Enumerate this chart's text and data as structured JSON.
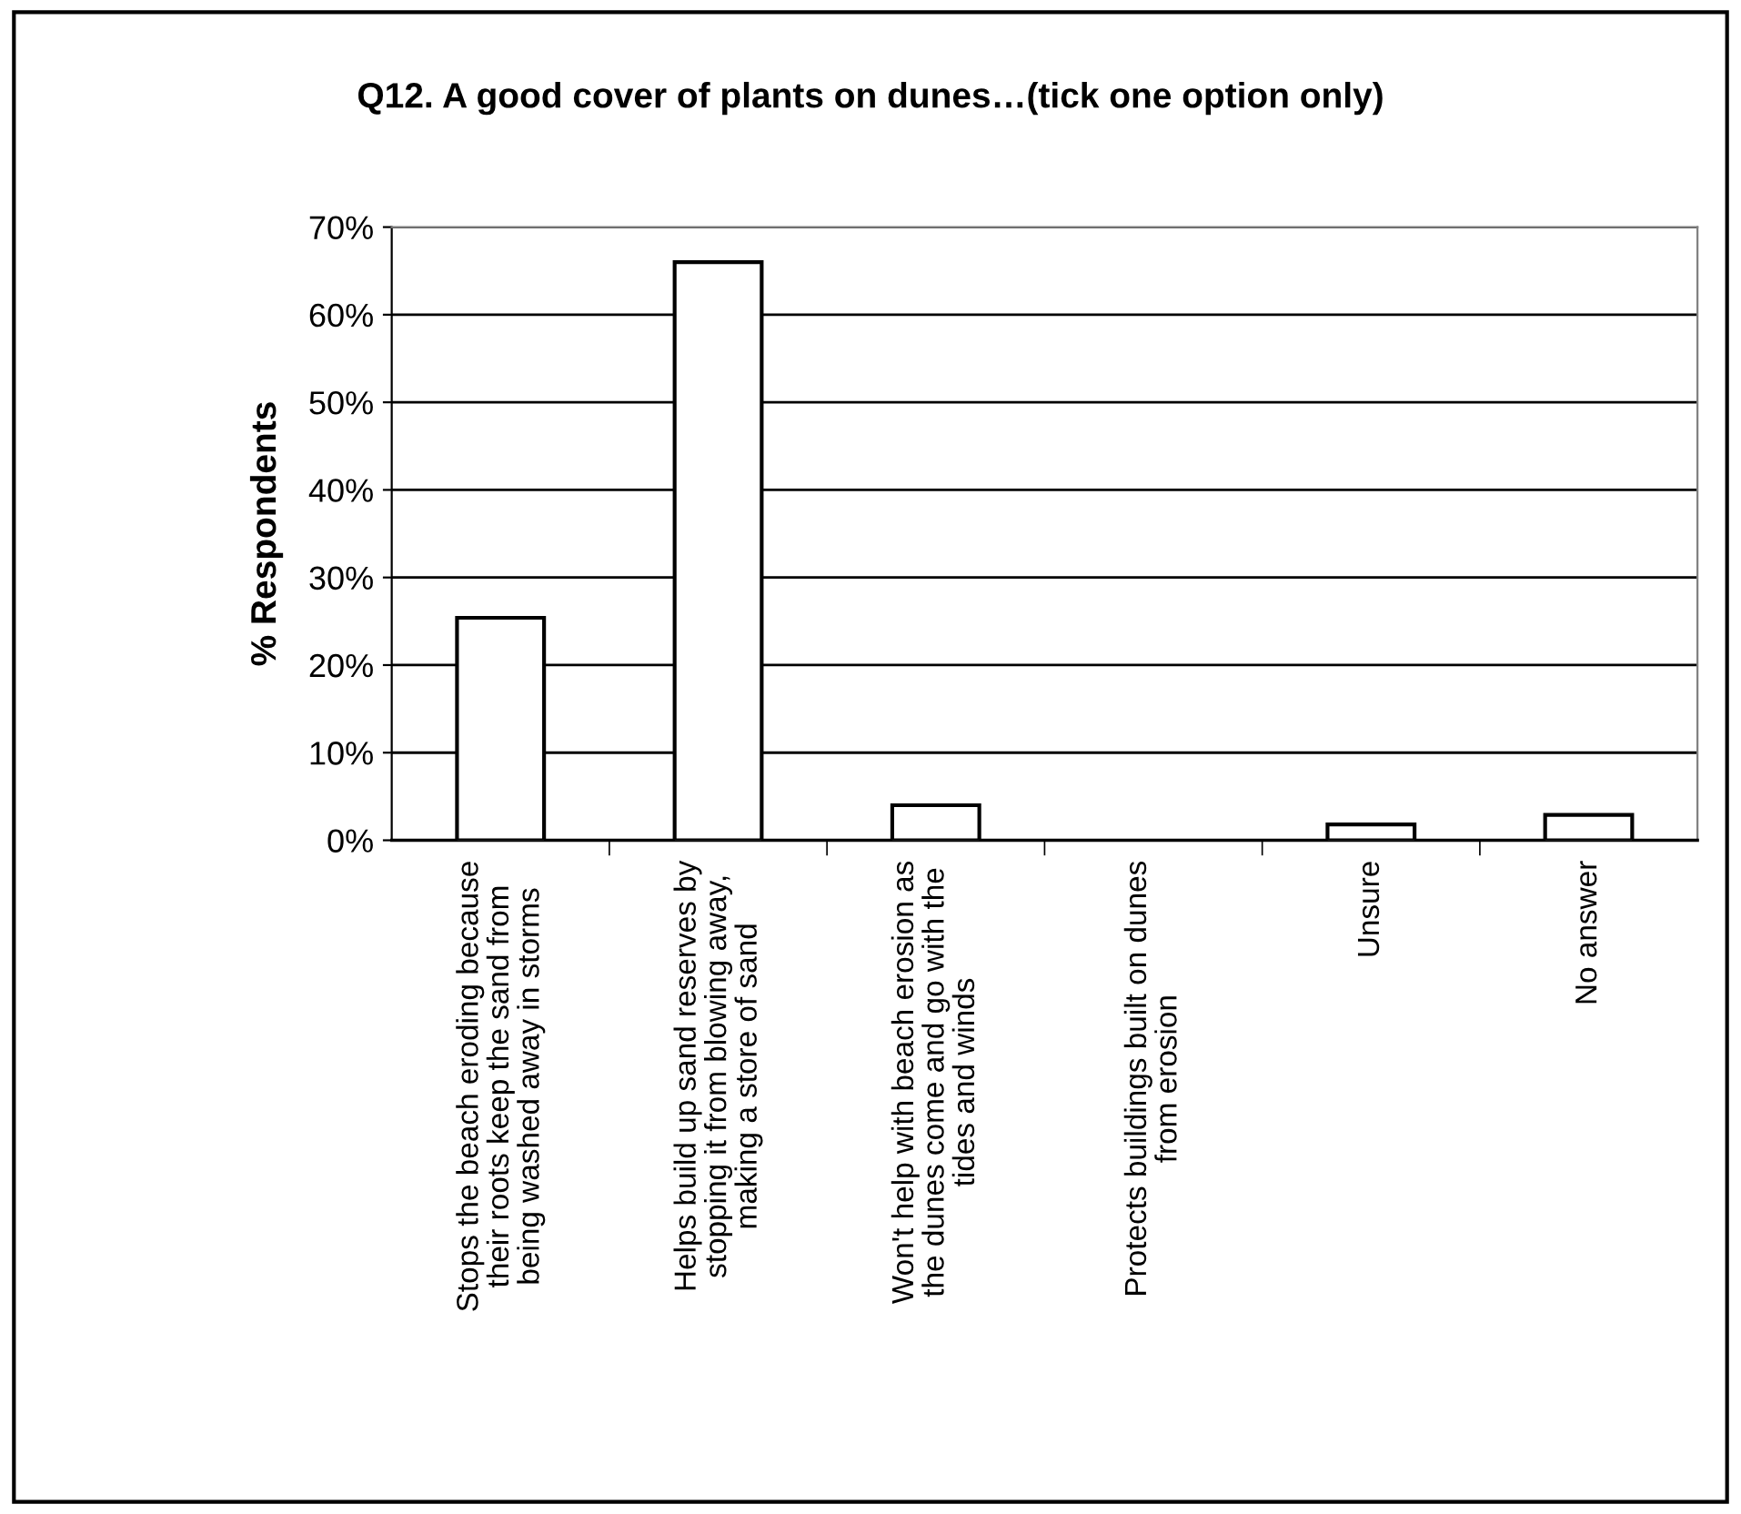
{
  "chart_data": {
    "type": "bar",
    "title": "Q12. A good cover of plants on dunes…(tick one option only)",
    "ylabel": "% Respondents",
    "categories": [
      "Stops the beach eroding because\ntheir roots keep the sand from\nbeing washed away in storms",
      "Helps build up sand reserves by\nstopping it from blowing away,\nmaking a store of sand",
      "Won't help with beach erosion as\nthe dunes come and go with the\ntides and winds",
      "Protects buildings built on dunes\nfrom erosion",
      "Unsure",
      "No answer"
    ],
    "values": [
      25.4,
      66.0,
      4.0,
      0,
      1.8,
      2.9
    ],
    "color": "#ffffff",
    "ylim": [
      0,
      70
    ],
    "yticks": [
      {
        "value": 0,
        "label": "0%"
      },
      {
        "value": 10,
        "label": "10%"
      },
      {
        "value": 20,
        "label": "20%"
      },
      {
        "value": 30,
        "label": "30%"
      },
      {
        "value": 40,
        "label": "40%"
      },
      {
        "value": 50,
        "label": "50%"
      },
      {
        "value": 60,
        "label": "60%"
      },
      {
        "value": 70,
        "label": "70%"
      }
    ],
    "grid": "y",
    "legend": false
  }
}
